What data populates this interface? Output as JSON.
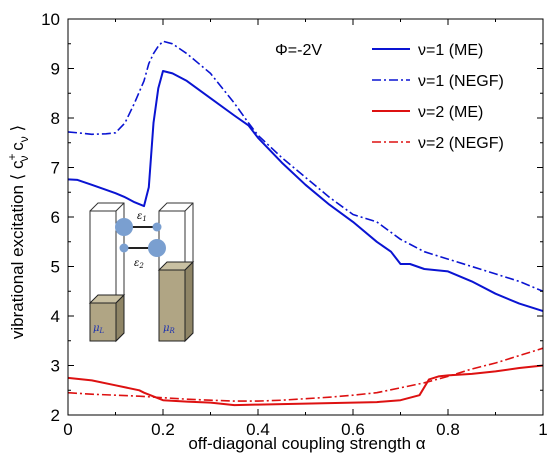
{
  "chart_data": {
    "type": "line",
    "title": "",
    "xlabel": "off-diagonal coupling strength α",
    "ylabel_prefix": "vibrational excitation ⟨ c",
    "ylabel_sup": "+",
    "ylabel_sub": "ν",
    "ylabel_mid": " c",
    "ylabel_suffix": " ⟩",
    "xlim": [
      0,
      1
    ],
    "ylim": [
      2,
      10
    ],
    "xticks": [
      0,
      0.2,
      0.4,
      0.6,
      0.8,
      1
    ],
    "xtick_labels": [
      "0",
      "0.2",
      "0.4",
      "0.6",
      "0.8",
      "1"
    ],
    "yticks": [
      2,
      3,
      4,
      5,
      6,
      7,
      8,
      9,
      10
    ],
    "ytick_labels": [
      "2",
      "3",
      "4",
      "5",
      "6",
      "7",
      "8",
      "9",
      "10"
    ],
    "annotation": "Φ=-2V",
    "legend_position": "top-right",
    "colors": {
      "blue": "#0a14d2",
      "red": "#dd1111"
    },
    "series": [
      {
        "name": "ν=1 (ME)",
        "color": "#0a14d2",
        "dash": "solid",
        "x": [
          0,
          0.02,
          0.05,
          0.08,
          0.1,
          0.12,
          0.14,
          0.16,
          0.17,
          0.18,
          0.19,
          0.2,
          0.22,
          0.25,
          0.3,
          0.35,
          0.38,
          0.4,
          0.45,
          0.5,
          0.55,
          0.6,
          0.65,
          0.68,
          0.7,
          0.72,
          0.75,
          0.8,
          0.85,
          0.9,
          0.95,
          1.0
        ],
        "y": [
          6.76,
          6.75,
          6.65,
          6.55,
          6.48,
          6.4,
          6.3,
          6.22,
          6.6,
          7.9,
          8.6,
          8.95,
          8.9,
          8.75,
          8.4,
          8.05,
          7.85,
          7.6,
          7.1,
          6.65,
          6.25,
          5.9,
          5.5,
          5.3,
          5.05,
          5.05,
          4.95,
          4.9,
          4.7,
          4.45,
          4.25,
          4.1
        ]
      },
      {
        "name": "ν=1 (NEGF)",
        "color": "#0a14d2",
        "dash": "dashdot",
        "x": [
          0,
          0.02,
          0.05,
          0.08,
          0.1,
          0.12,
          0.14,
          0.16,
          0.17,
          0.18,
          0.19,
          0.2,
          0.22,
          0.25,
          0.3,
          0.35,
          0.38,
          0.4,
          0.45,
          0.5,
          0.55,
          0.6,
          0.65,
          0.7,
          0.75,
          0.8,
          0.85,
          0.9,
          0.95,
          1.0
        ],
        "y": [
          7.72,
          7.7,
          7.67,
          7.68,
          7.7,
          7.9,
          8.3,
          8.75,
          9.1,
          9.3,
          9.45,
          9.55,
          9.5,
          9.3,
          8.9,
          8.3,
          7.9,
          7.65,
          7.2,
          6.8,
          6.4,
          6.05,
          5.9,
          5.55,
          5.3,
          5.15,
          5.0,
          4.85,
          4.7,
          4.5
        ]
      },
      {
        "name": "ν=2 (ME)",
        "color": "#dd1111",
        "dash": "solid",
        "x": [
          0,
          0.05,
          0.1,
          0.15,
          0.16,
          0.2,
          0.25,
          0.3,
          0.35,
          0.4,
          0.45,
          0.5,
          0.55,
          0.6,
          0.65,
          0.7,
          0.74,
          0.76,
          0.78,
          0.8,
          0.85,
          0.9,
          0.95,
          1.0
        ],
        "y": [
          2.75,
          2.7,
          2.6,
          2.5,
          2.45,
          2.3,
          2.27,
          2.25,
          2.2,
          2.21,
          2.22,
          2.23,
          2.24,
          2.25,
          2.26,
          2.3,
          2.4,
          2.72,
          2.78,
          2.8,
          2.83,
          2.88,
          2.95,
          3.0
        ]
      },
      {
        "name": "ν=2 (NEGF)",
        "color": "#dd1111",
        "dash": "dashdot",
        "x": [
          0,
          0.05,
          0.1,
          0.15,
          0.2,
          0.25,
          0.3,
          0.35,
          0.4,
          0.45,
          0.5,
          0.55,
          0.6,
          0.65,
          0.7,
          0.75,
          0.8,
          0.85,
          0.9,
          0.95,
          1.0
        ],
        "y": [
          2.45,
          2.42,
          2.4,
          2.38,
          2.35,
          2.32,
          2.3,
          2.28,
          2.28,
          2.3,
          2.33,
          2.36,
          2.4,
          2.45,
          2.55,
          2.65,
          2.78,
          2.93,
          3.05,
          3.2,
          3.35
        ]
      }
    ],
    "inset": {
      "epsilon1": "ε",
      "epsilon1_sub": "1",
      "epsilon2": "ε",
      "epsilon2_sub": "2",
      "muL": "μ",
      "muL_sub": "L",
      "muR": "μ",
      "muR_sub": "R"
    }
  }
}
